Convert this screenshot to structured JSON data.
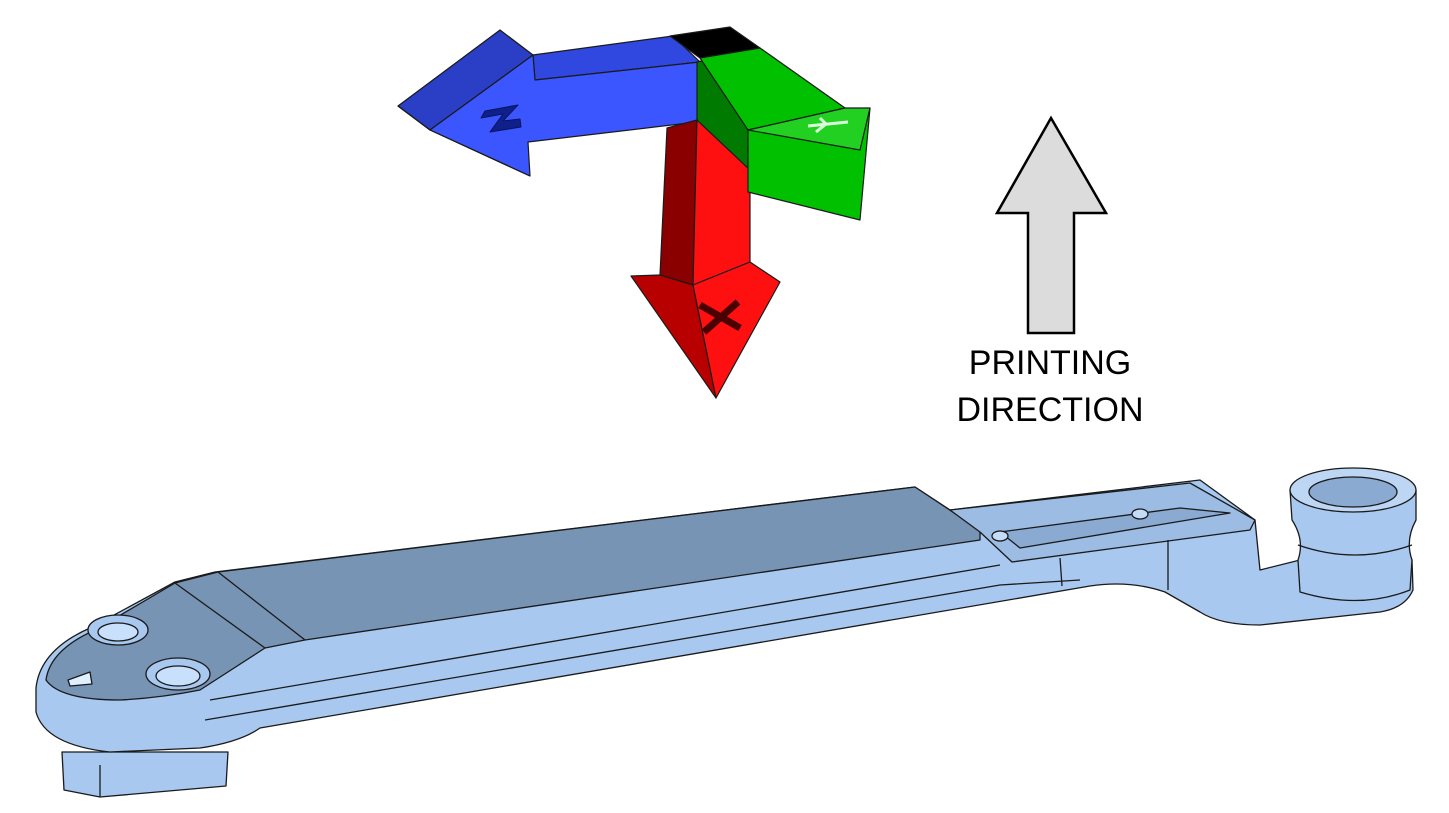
{
  "axis_triad": {
    "x_label": "X",
    "y_label": "Y",
    "z_label": "Z",
    "colors": {
      "x": "#ff1010",
      "y": "#00c000",
      "z": "#3c56ff",
      "origin": "#a0a4b4"
    }
  },
  "printing_direction": {
    "line1": "PRINTING",
    "line2": "DIRECTION",
    "arrow_color": "#dcdcdc"
  },
  "part": {
    "top_color": "#7894b4",
    "side_color": "#a8c8f0",
    "edge_color": "#1a1a1a"
  }
}
